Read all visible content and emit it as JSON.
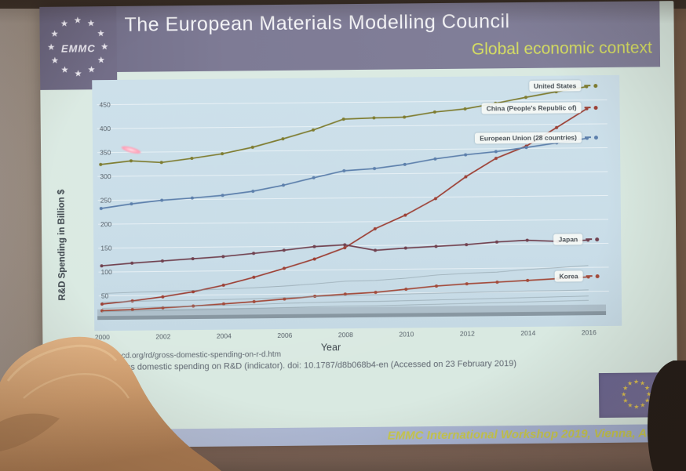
{
  "photo": {
    "laser_pointer_color": "#ff9fb6",
    "hair_color": "#cf9d6e",
    "silhouette_color": "#241d18"
  },
  "icons": {
    "star": "★"
  },
  "slide": {
    "header": {
      "title": "The European Materials Modelling Council",
      "subtitle": "Global economic context",
      "logo_text": "EMMC",
      "banner_color": "#7c7993",
      "title_color": "#f4f4f7",
      "subtitle_color": "#d6de62"
    },
    "chart_data": {
      "type": "line",
      "title": "",
      "xlabel": "Year",
      "ylabel": "R&D Spending in Billion $",
      "x": [
        2000,
        2001,
        2002,
        2003,
        2004,
        2005,
        2006,
        2007,
        2008,
        2009,
        2010,
        2011,
        2012,
        2013,
        2014,
        2015,
        2016
      ],
      "xticks": [
        2000,
        2002,
        2004,
        2006,
        2008,
        2010,
        2012,
        2014,
        2016
      ],
      "yticks": [
        50,
        100,
        150,
        200,
        250,
        300,
        350,
        400,
        450
      ],
      "ylim": [
        0,
        480
      ],
      "grid": true,
      "legend_position": "line-end-labels",
      "series": [
        {
          "name": "United States",
          "color": "#7f7d31",
          "labeled": true,
          "values": [
            325,
            332,
            328,
            336,
            345,
            358,
            375,
            393,
            415,
            417,
            418,
            428,
            434,
            445,
            457,
            468,
            478
          ]
        },
        {
          "name": "China (People's Republic of)",
          "color": "#9d4136",
          "labeled": true,
          "values": [
            33,
            39,
            47,
            57,
            70,
            86,
            104,
            123,
            146,
            185,
            213,
            247,
            292,
            330,
            355,
            393,
            432
          ]
        },
        {
          "name": "European Union (28 countries)",
          "color": "#5d80ac",
          "labeled": true,
          "values": [
            233,
            242,
            249,
            253,
            258,
            266,
            278,
            293,
            307,
            311,
            319,
            330,
            338,
            344,
            352,
            361,
            370
          ]
        },
        {
          "name": "Japan",
          "color": "#714250",
          "labeled": true,
          "values": [
            113,
            118,
            122,
            126,
            130,
            136,
            142,
            149,
            152,
            140,
            144,
            147,
            150,
            155,
            158,
            155,
            157
          ]
        },
        {
          "name": "Korea",
          "color": "#a34b3b",
          "labeled": true,
          "values": [
            19,
            21,
            24,
            27,
            31,
            35,
            40,
            45,
            49,
            52,
            58,
            64,
            68,
            71,
            74,
            77,
            80
          ]
        },
        {
          "name": "",
          "color": "#8fa0a8",
          "labeled": false,
          "values": [
            55,
            57,
            58,
            60,
            62,
            64,
            67,
            71,
            76,
            77,
            81,
            87,
            90,
            92,
            97,
            100,
            104
          ]
        },
        {
          "name": "",
          "color": "#8fa0a8",
          "labeled": false,
          "values": [
            37,
            38,
            39,
            39,
            40,
            41,
            43,
            44,
            46,
            47,
            48,
            49,
            50,
            51,
            52,
            52,
            53
          ]
        },
        {
          "name": "",
          "color": "#8fa0a8",
          "labeled": false,
          "values": [
            24,
            25,
            26,
            27,
            28,
            29,
            31,
            32,
            33,
            33,
            34,
            35,
            36,
            37,
            38,
            39,
            40
          ]
        },
        {
          "name": "",
          "color": "#8fa0a8",
          "labeled": false,
          "values": [
            17,
            18,
            18,
            19,
            20,
            21,
            22,
            23,
            24,
            24,
            25,
            26,
            27,
            28,
            29,
            30,
            31
          ]
        }
      ],
      "background_bands": [
        {
          "min": 0,
          "max": 8,
          "color": "rgba(74,84,94,0.50)"
        },
        {
          "min": 8,
          "max": 22,
          "color": "rgba(110,122,132,0.28)"
        }
      ]
    },
    "source": {
      "line1": "cd.org/rd/gross-domestic-spending-on-r-d.htm",
      "line2": "oss domestic spending on R&D (indicator). doi: 10.1787/d8b068b4-en (Accessed on 23 February 2019)"
    },
    "footer": {
      "text": "EMMC International Workshop 2019, Vienna, Aus",
      "band_color": "#aeb9d6",
      "text_color": "#c9c94d"
    }
  }
}
